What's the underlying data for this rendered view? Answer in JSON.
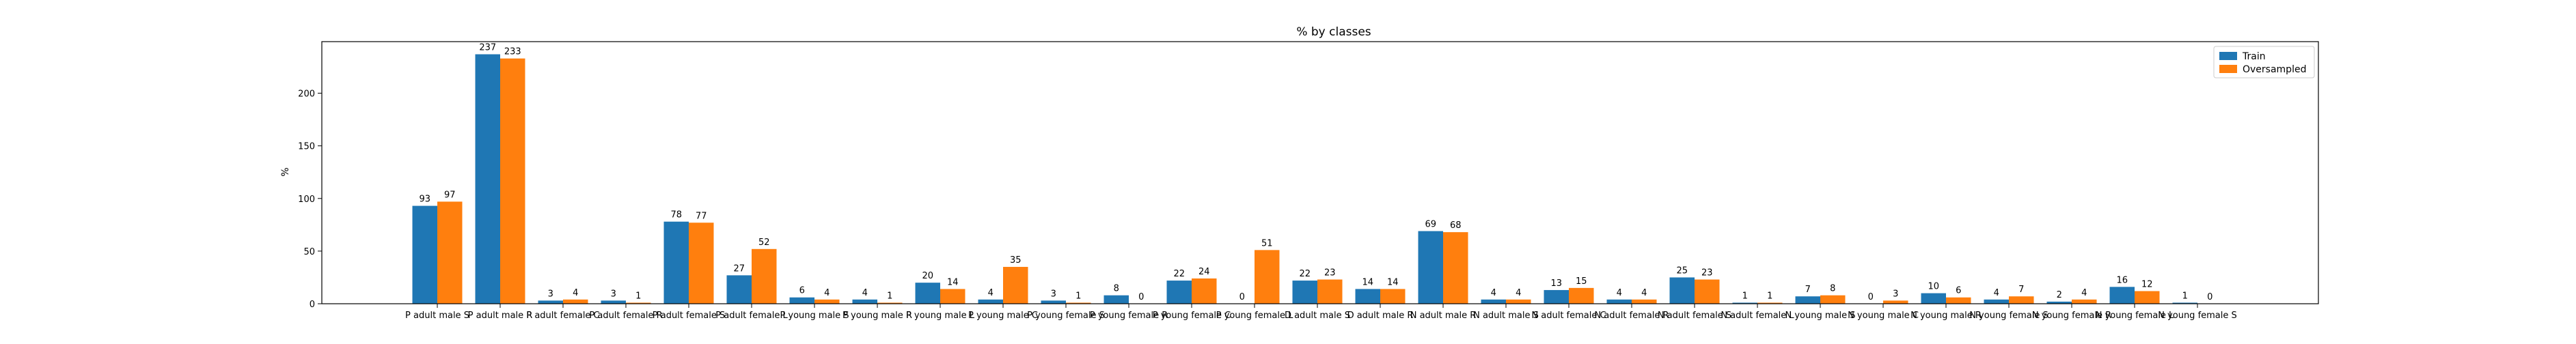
{
  "chart_data": {
    "type": "bar",
    "title": "% by classes",
    "xlabel": "",
    "ylabel": "%",
    "ylim": [
      0,
      249
    ],
    "yticks": [
      0,
      50,
      100,
      150,
      200
    ],
    "legend_position": "top-right",
    "categories": [
      "P adult male S",
      "P adult male R",
      "P adult female C",
      "P adult female R",
      "P adult female S",
      "P adult female L",
      "P young male S",
      "P young male R",
      "P young male L",
      "P young male C",
      "P young female S",
      "P young female R",
      "P young female C",
      "P young female L",
      "D adult male S",
      "D adult male R",
      "N adult male R",
      "N adult male S",
      "N adult female C",
      "N adult female R",
      "N adult female S",
      "N adult female L",
      "N young male S",
      "N young male C",
      "N young male R",
      "N young female S",
      "N young female R",
      "N young female L",
      "N young female S"
    ],
    "series": [
      {
        "name": "Train",
        "color": "#1f77b4",
        "values": [
          93,
          237,
          3,
          3,
          78,
          27,
          6,
          4,
          20,
          4,
          3,
          8,
          22,
          0,
          22,
          14,
          69,
          4,
          13,
          4,
          25,
          1,
          7,
          0,
          10,
          4,
          2,
          16,
          1
        ]
      },
      {
        "name": "Oversampled",
        "color": "#ff7f0e",
        "values": [
          97,
          233,
          4,
          1,
          77,
          52,
          4,
          1,
          14,
          35,
          1,
          0,
          24,
          51,
          23,
          14,
          68,
          4,
          15,
          4,
          23,
          1,
          8,
          3,
          6,
          7,
          4,
          12,
          0
        ]
      }
    ]
  }
}
